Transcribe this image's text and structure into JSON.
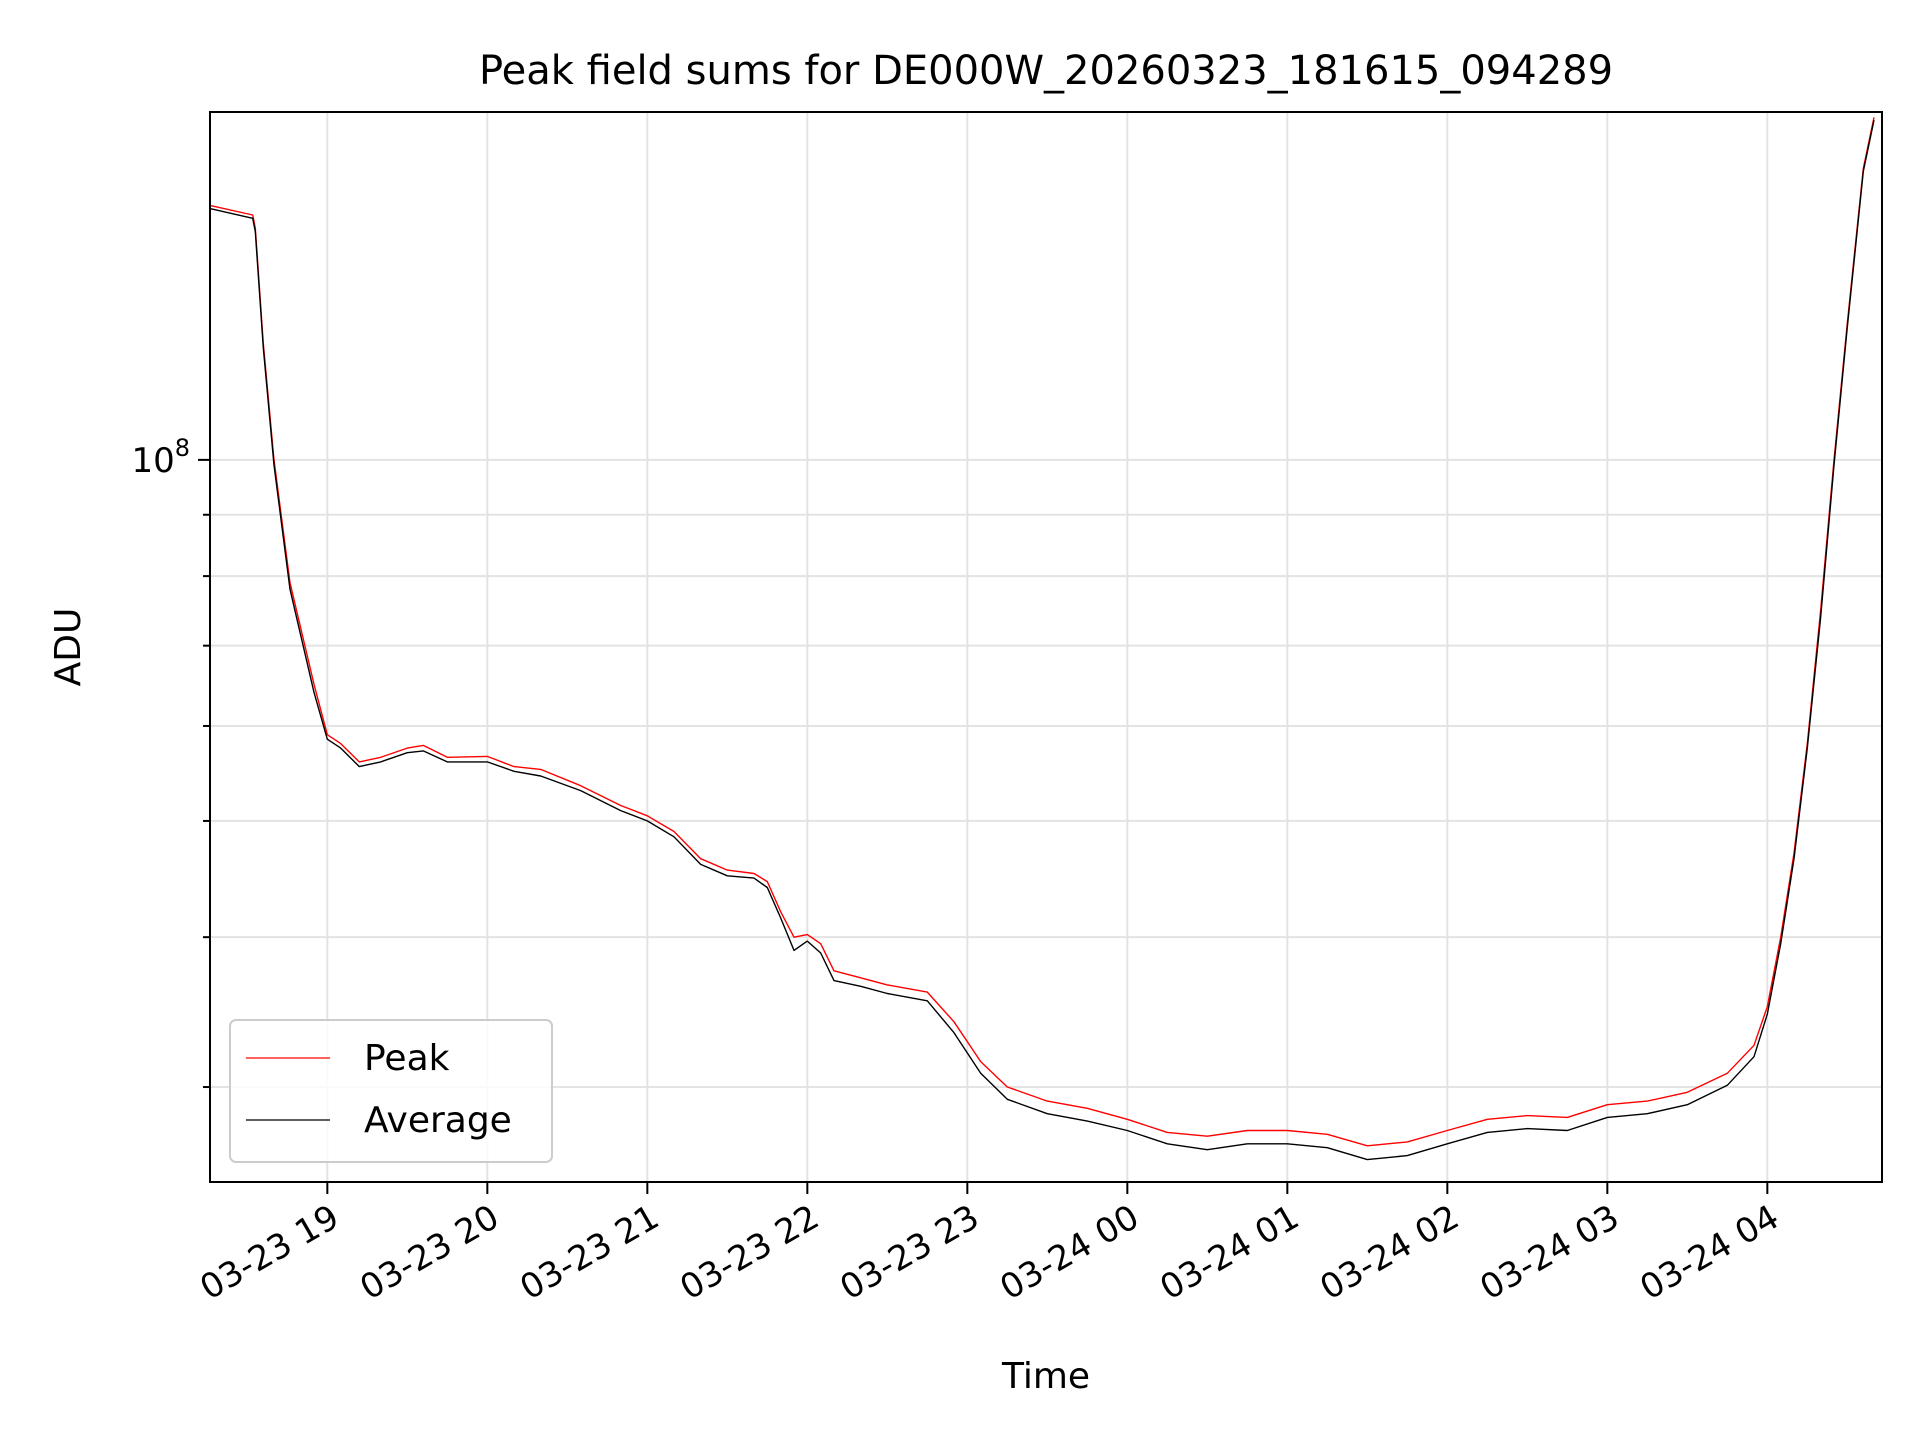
{
  "chart_data": {
    "type": "line",
    "title": "Peak field sums for DE000W_20260323_181615_094289",
    "xlabel": "Time",
    "ylabel": "ADU",
    "y_scale": "log",
    "ylim": [
      25000000,
      195000000
    ],
    "xlim": [
      "2026-03-23 18:16",
      "2026-03-24 04:43"
    ],
    "grid": true,
    "legend_position": "lower-left",
    "x_ticks": [
      {
        "t": "2026-03-23 19:00",
        "label": "03-23 19"
      },
      {
        "t": "2026-03-23 20:00",
        "label": "03-23 20"
      },
      {
        "t": "2026-03-23 21:00",
        "label": "03-23 21"
      },
      {
        "t": "2026-03-23 22:00",
        "label": "03-23 22"
      },
      {
        "t": "2026-03-23 23:00",
        "label": "03-23 23"
      },
      {
        "t": "2026-03-24 00:00",
        "label": "03-24 00"
      },
      {
        "t": "2026-03-24 01:00",
        "label": "03-24 01"
      },
      {
        "t": "2026-03-24 02:00",
        "label": "03-24 02"
      },
      {
        "t": "2026-03-24 03:00",
        "label": "03-24 03"
      },
      {
        "t": "2026-03-24 04:00",
        "label": "03-24 04"
      }
    ],
    "y_tick": {
      "value": 100000000,
      "label_base": "10",
      "label_exp": "8"
    },
    "series": [
      {
        "name": "Peak",
        "color": "#ff0000",
        "points": [
          [
            "2026-03-23 18:16",
            163000000
          ],
          [
            "2026-03-23 18:32",
            160000000
          ],
          [
            "2026-03-23 18:33",
            156000000
          ],
          [
            "2026-03-23 18:36",
            125000000
          ],
          [
            "2026-03-23 18:40",
            100000000
          ],
          [
            "2026-03-23 18:46",
            79000000
          ],
          [
            "2026-03-23 18:55",
            65000000
          ],
          [
            "2026-03-23 19:00",
            59000000
          ],
          [
            "2026-03-23 19:05",
            58000000
          ],
          [
            "2026-03-23 19:12",
            56000000
          ],
          [
            "2026-03-23 19:20",
            56500000
          ],
          [
            "2026-03-23 19:30",
            57500000
          ],
          [
            "2026-03-23 19:36",
            57800000
          ],
          [
            "2026-03-23 19:45",
            56500000
          ],
          [
            "2026-03-23 20:00",
            56600000
          ],
          [
            "2026-03-23 20:10",
            55500000
          ],
          [
            "2026-03-23 20:20",
            55200000
          ],
          [
            "2026-03-23 20:35",
            53500000
          ],
          [
            "2026-03-23 20:50",
            51500000
          ],
          [
            "2026-03-23 21:00",
            50500000
          ],
          [
            "2026-03-23 21:10",
            49000000
          ],
          [
            "2026-03-23 21:20",
            46500000
          ],
          [
            "2026-03-23 21:30",
            45500000
          ],
          [
            "2026-03-23 21:40",
            45200000
          ],
          [
            "2026-03-23 21:45",
            44500000
          ],
          [
            "2026-03-23 21:50",
            42000000
          ],
          [
            "2026-03-23 21:55",
            40000000
          ],
          [
            "2026-03-23 22:00",
            40200000
          ],
          [
            "2026-03-23 22:05",
            39500000
          ],
          [
            "2026-03-23 22:10",
            37500000
          ],
          [
            "2026-03-23 22:20",
            37000000
          ],
          [
            "2026-03-23 22:30",
            36500000
          ],
          [
            "2026-03-23 22:45",
            36000000
          ],
          [
            "2026-03-23 22:55",
            34000000
          ],
          [
            "2026-03-23 23:05",
            31500000
          ],
          [
            "2026-03-23 23:15",
            30000000
          ],
          [
            "2026-03-23 23:30",
            29200000
          ],
          [
            "2026-03-23 23:45",
            28800000
          ],
          [
            "2026-03-24 00:00",
            28200000
          ],
          [
            "2026-03-24 00:15",
            27500000
          ],
          [
            "2026-03-24 00:30",
            27300000
          ],
          [
            "2026-03-24 00:45",
            27600000
          ],
          [
            "2026-03-24 01:00",
            27600000
          ],
          [
            "2026-03-24 01:15",
            27400000
          ],
          [
            "2026-03-24 01:30",
            26800000
          ],
          [
            "2026-03-24 01:45",
            27000000
          ],
          [
            "2026-03-24 02:00",
            27600000
          ],
          [
            "2026-03-24 02:15",
            28200000
          ],
          [
            "2026-03-24 02:30",
            28400000
          ],
          [
            "2026-03-24 02:45",
            28300000
          ],
          [
            "2026-03-24 03:00",
            29000000
          ],
          [
            "2026-03-24 03:15",
            29200000
          ],
          [
            "2026-03-24 03:30",
            29700000
          ],
          [
            "2026-03-24 03:45",
            30800000
          ],
          [
            "2026-03-24 03:55",
            32500000
          ],
          [
            "2026-03-24 04:00",
            35000000
          ],
          [
            "2026-03-24 04:05",
            40000000
          ],
          [
            "2026-03-24 04:10",
            47000000
          ],
          [
            "2026-03-24 04:15",
            58000000
          ],
          [
            "2026-03-24 04:20",
            75000000
          ],
          [
            "2026-03-24 04:25",
            100000000
          ],
          [
            "2026-03-24 04:30",
            130000000
          ],
          [
            "2026-03-24 04:36",
            175000000
          ],
          [
            "2026-03-24 04:40",
            193000000
          ]
        ]
      },
      {
        "name": "Average",
        "color": "#000000",
        "points": [
          [
            "2026-03-23 18:16",
            162000000
          ],
          [
            "2026-03-23 18:32",
            159000000
          ],
          [
            "2026-03-23 18:33",
            155000000
          ],
          [
            "2026-03-23 18:36",
            124000000
          ],
          [
            "2026-03-23 18:40",
            99000000
          ],
          [
            "2026-03-23 18:46",
            78000000
          ],
          [
            "2026-03-23 18:55",
            64000000
          ],
          [
            "2026-03-23 19:00",
            58500000
          ],
          [
            "2026-03-23 19:05",
            57500000
          ],
          [
            "2026-03-23 19:12",
            55500000
          ],
          [
            "2026-03-23 19:20",
            56000000
          ],
          [
            "2026-03-23 19:30",
            57000000
          ],
          [
            "2026-03-23 19:36",
            57200000
          ],
          [
            "2026-03-23 19:45",
            56000000
          ],
          [
            "2026-03-23 20:00",
            56000000
          ],
          [
            "2026-03-23 20:10",
            55000000
          ],
          [
            "2026-03-23 20:20",
            54500000
          ],
          [
            "2026-03-23 20:35",
            53000000
          ],
          [
            "2026-03-23 20:50",
            51000000
          ],
          [
            "2026-03-23 21:00",
            50000000
          ],
          [
            "2026-03-23 21:10",
            48500000
          ],
          [
            "2026-03-23 21:20",
            46000000
          ],
          [
            "2026-03-23 21:30",
            45000000
          ],
          [
            "2026-03-23 21:40",
            44800000
          ],
          [
            "2026-03-23 21:45",
            44000000
          ],
          [
            "2026-03-23 21:50",
            41500000
          ],
          [
            "2026-03-23 21:55",
            39000000
          ],
          [
            "2026-03-23 22:00",
            39700000
          ],
          [
            "2026-03-23 22:05",
            38800000
          ],
          [
            "2026-03-23 22:10",
            36800000
          ],
          [
            "2026-03-23 22:20",
            36400000
          ],
          [
            "2026-03-23 22:30",
            35900000
          ],
          [
            "2026-03-23 22:45",
            35400000
          ],
          [
            "2026-03-23 22:55",
            33300000
          ],
          [
            "2026-03-23 23:05",
            30800000
          ],
          [
            "2026-03-23 23:15",
            29300000
          ],
          [
            "2026-03-23 23:30",
            28500000
          ],
          [
            "2026-03-23 23:45",
            28100000
          ],
          [
            "2026-03-24 00:00",
            27600000
          ],
          [
            "2026-03-24 00:15",
            26900000
          ],
          [
            "2026-03-24 00:30",
            26600000
          ],
          [
            "2026-03-24 00:45",
            26900000
          ],
          [
            "2026-03-24 01:00",
            26900000
          ],
          [
            "2026-03-24 01:15",
            26700000
          ],
          [
            "2026-03-24 01:30",
            26100000
          ],
          [
            "2026-03-24 01:45",
            26300000
          ],
          [
            "2026-03-24 02:00",
            26900000
          ],
          [
            "2026-03-24 02:15",
            27500000
          ],
          [
            "2026-03-24 02:30",
            27700000
          ],
          [
            "2026-03-24 02:45",
            27600000
          ],
          [
            "2026-03-24 03:00",
            28300000
          ],
          [
            "2026-03-24 03:15",
            28500000
          ],
          [
            "2026-03-24 03:30",
            29000000
          ],
          [
            "2026-03-24 03:45",
            30100000
          ],
          [
            "2026-03-24 03:55",
            31800000
          ],
          [
            "2026-03-24 04:00",
            34500000
          ],
          [
            "2026-03-24 04:05",
            39500000
          ],
          [
            "2026-03-24 04:10",
            46500000
          ],
          [
            "2026-03-24 04:15",
            57500000
          ],
          [
            "2026-03-24 04:20",
            74000000
          ],
          [
            "2026-03-24 04:25",
            99000000
          ],
          [
            "2026-03-24 04:30",
            129000000
          ],
          [
            "2026-03-24 04:36",
            174000000
          ],
          [
            "2026-03-24 04:40",
            192000000
          ]
        ]
      }
    ]
  }
}
